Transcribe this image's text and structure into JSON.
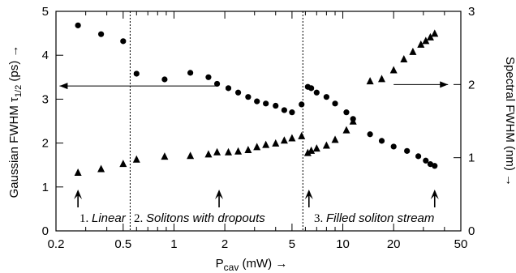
{
  "chart_data": {
    "type": "scatter",
    "xscale": "log",
    "xlim": [
      0.2,
      50
    ],
    "ylim_left": [
      0,
      5
    ],
    "ylim_right": [
      0,
      3
    ],
    "xticks": [
      0.2,
      0.5,
      1,
      2,
      5,
      10,
      20,
      50
    ],
    "xtick_labels": [
      "0.2",
      "0.5",
      "1",
      "2",
      "5",
      "10",
      "20",
      "50"
    ],
    "yticks_left": [
      "0",
      "1",
      "2",
      "3",
      "4",
      "5"
    ],
    "yticks_right": [
      "0",
      "1",
      "2",
      "3"
    ],
    "xlabel_main": "P",
    "xlabel_sub": "cav",
    "xlabel_rest": " (mW) →",
    "ylabel_left": "Gaussian FWHM τ",
    "ylabel_left_sub": "1/2",
    "ylabel_left_rest": " (ps) →",
    "ylabel_right": "Spectral FWHM (nm) →",
    "grid": false,
    "regions": [
      {
        "num": "1.",
        "label": "Linear"
      },
      {
        "num": "2.",
        "label": "Solitons with dropouts"
      },
      {
        "num": "3.",
        "label": "Filled soliton stream"
      }
    ],
    "region_boundaries": [
      0.55,
      5.8
    ],
    "series": [
      {
        "marker": "circle",
        "axis": "left",
        "x": [
          0.27,
          0.37,
          0.5,
          0.6,
          0.88,
          1.25,
          1.6,
          1.8,
          2.1,
          2.4,
          2.75,
          3.1,
          3.5,
          4.0,
          4.5,
          5.0,
          5.7,
          6.2,
          6.5,
          7.0,
          8.0,
          9.0,
          10.5,
          11.5,
          14.5,
          17.0,
          20.0,
          24.0,
          28.0,
          31.0,
          33.0,
          35.0
        ],
        "y": [
          4.68,
          4.48,
          4.32,
          3.58,
          3.45,
          3.6,
          3.5,
          3.35,
          3.25,
          3.15,
          3.05,
          2.95,
          2.9,
          2.85,
          2.75,
          2.7,
          2.88,
          3.28,
          3.25,
          3.15,
          3.05,
          2.9,
          2.7,
          2.55,
          2.2,
          2.05,
          1.92,
          1.82,
          1.7,
          1.6,
          1.52,
          1.48
        ]
      },
      {
        "marker": "triangle",
        "axis": "right",
        "x": [
          0.27,
          0.37,
          0.5,
          0.6,
          0.88,
          1.25,
          1.6,
          1.8,
          2.1,
          2.4,
          2.75,
          3.1,
          3.5,
          4.0,
          4.5,
          5.0,
          5.7,
          6.2,
          6.5,
          7.0,
          8.0,
          9.0,
          10.5,
          11.5,
          14.5,
          17.0,
          20.0,
          23.0,
          26.0,
          29.0,
          31.0,
          33.0,
          35.0
        ],
        "y": [
          0.8,
          0.85,
          0.92,
          0.98,
          1.02,
          1.03,
          1.05,
          1.08,
          1.08,
          1.09,
          1.11,
          1.15,
          1.18,
          1.2,
          1.24,
          1.27,
          1.3,
          1.07,
          1.1,
          1.13,
          1.17,
          1.25,
          1.38,
          1.5,
          2.05,
          2.08,
          2.2,
          2.35,
          2.45,
          2.55,
          2.6,
          2.65,
          2.7
        ]
      }
    ],
    "annotations": {
      "left_arrow_y": 3.3,
      "left_arrow_x_start": 1.8,
      "left_arrow_x_end": 0.21,
      "right_arrow_y": 2.0,
      "right_arrow_x_start": 20,
      "right_arrow_x_end": 42,
      "up_arrows_x": [
        0.27,
        1.85,
        6.3,
        35
      ]
    }
  }
}
